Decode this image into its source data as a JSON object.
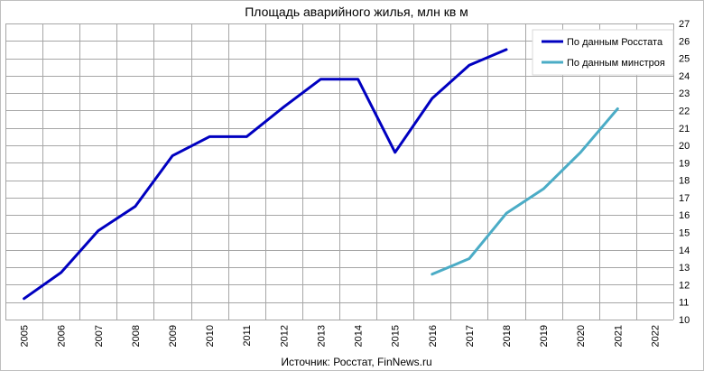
{
  "chart_data": {
    "type": "line",
    "title": "Площадь аварийного жилья, млн кв м",
    "source": "Источник: Росстат, FinNews.ru",
    "xlabel": "",
    "ylabel": "",
    "categories": [
      "2005",
      "2006",
      "2007",
      "2008",
      "2009",
      "2010",
      "2011",
      "2012",
      "2013",
      "2014",
      "2015",
      "2016",
      "2017",
      "2018",
      "2019",
      "2020",
      "2021",
      "2022"
    ],
    "ylim": [
      10,
      27
    ],
    "yticks": [
      "10",
      "11",
      "12",
      "13",
      "14",
      "15",
      "16",
      "17",
      "18",
      "19",
      "20",
      "21",
      "22",
      "23",
      "24",
      "25",
      "26",
      "27"
    ],
    "y_axis_position": "right",
    "grid": true,
    "legend_position": "top-right",
    "series": [
      {
        "name": "По данным Росстата",
        "color": "#0000c0",
        "values": [
          11.2,
          12.7,
          15.1,
          16.5,
          19.4,
          20.5,
          20.5,
          22.2,
          23.8,
          23.8,
          19.6,
          22.7,
          24.6,
          25.5,
          null,
          null,
          null,
          null
        ]
      },
      {
        "name": "По данным минстроя",
        "color": "#4bacc6",
        "values": [
          null,
          null,
          null,
          null,
          null,
          null,
          null,
          null,
          null,
          null,
          null,
          12.6,
          13.5,
          16.1,
          17.5,
          19.6,
          22.1,
          null
        ]
      }
    ]
  }
}
